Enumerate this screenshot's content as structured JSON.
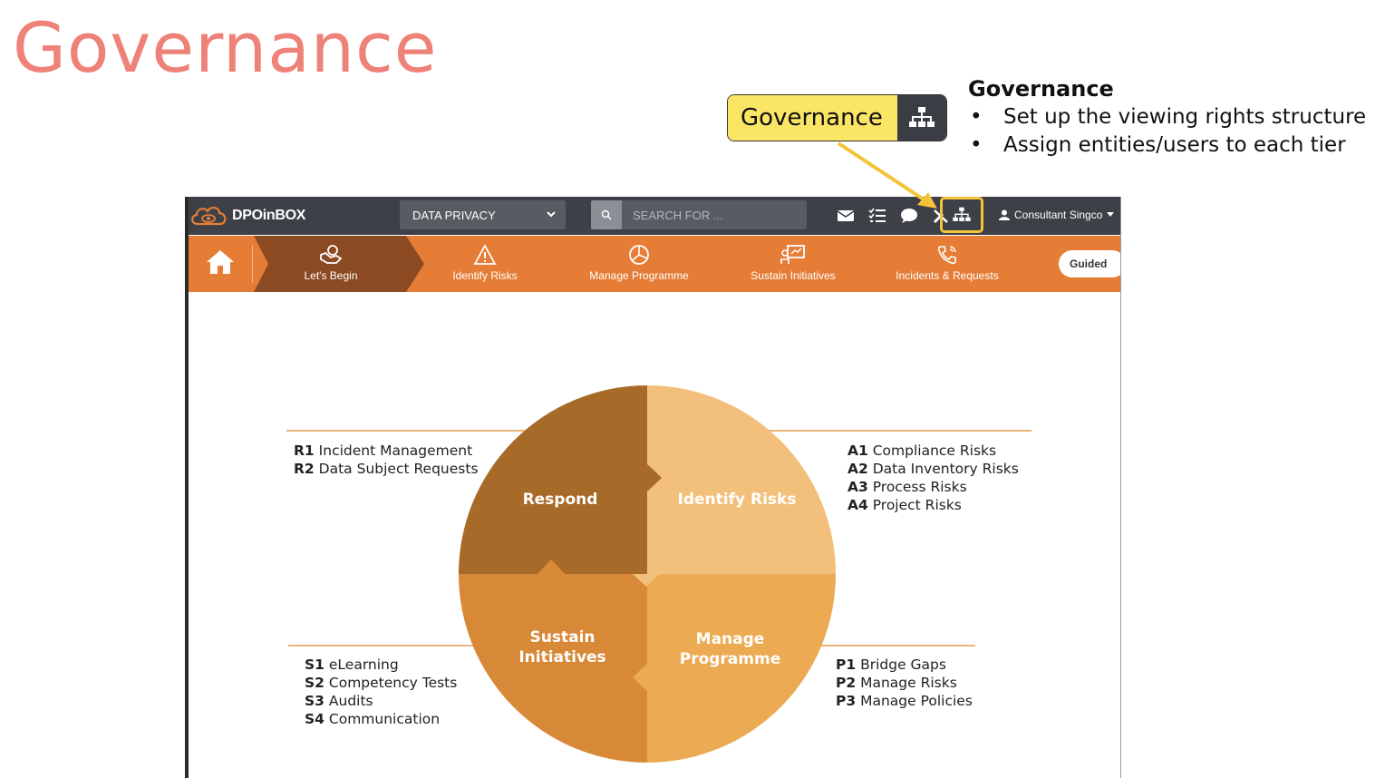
{
  "slide": {
    "title": "Governance"
  },
  "callout": {
    "label": "Governance",
    "icon": "sitemap-icon",
    "highlight_color": "#f4c33a"
  },
  "description": {
    "heading": "Governance",
    "bullets": [
      "Set up the viewing rights structure",
      "Assign entities/users to each tier"
    ]
  },
  "app": {
    "brand": "DPOinBOX",
    "module_select": "DATA PRIVACY",
    "search_placeholder": "SEARCH FOR ...",
    "top_icons": [
      "envelope-icon",
      "checklist-icon",
      "chat-icon",
      "tools-icon",
      "sitemap-icon"
    ],
    "user": "Consultant Singco",
    "nav": [
      {
        "label": "Let's Begin",
        "icon": "handshake-icon",
        "active": true
      },
      {
        "label": "Identify Risks",
        "icon": "warning-icon"
      },
      {
        "label": "Manage Programme",
        "icon": "chart-pie-icon"
      },
      {
        "label": "Sustain Initiatives",
        "icon": "presentation-icon"
      },
      {
        "label": "Incidents & Requests",
        "icon": "phone-icon"
      }
    ],
    "guided_label": "Guided",
    "colors": {
      "topbar": "#3d4147",
      "navbar": "#e57d37",
      "nav_active": "#8c4a22"
    }
  },
  "diagram": {
    "quadrants": {
      "respond": {
        "label": "Respond",
        "color": "#a86a28"
      },
      "identify": {
        "label": "Identify Risks",
        "color": "#f2c07a"
      },
      "sustain": {
        "label_line1": "Sustain",
        "label_line2": "Initiatives",
        "color": "#d88938"
      },
      "manage": {
        "label_line1": "Manage",
        "label_line2": "Programme",
        "color": "#ecaa52"
      }
    },
    "respond_items": [
      {
        "code": "R1",
        "text": "Incident Management"
      },
      {
        "code": "R2",
        "text": "Data Subject Requests"
      }
    ],
    "identify_items": [
      {
        "code": "A1",
        "text": "Compliance Risks"
      },
      {
        "code": "A2",
        "text": "Data Inventory Risks"
      },
      {
        "code": "A3",
        "text": "Process Risks"
      },
      {
        "code": "A4",
        "text": "Project Risks"
      }
    ],
    "sustain_items": [
      {
        "code": "S1",
        "text": "eLearning"
      },
      {
        "code": "S2",
        "text": "Competency Tests"
      },
      {
        "code": "S3",
        "text": "Audits"
      },
      {
        "code": "S4",
        "text": "Communication"
      }
    ],
    "manage_items": [
      {
        "code": "P1",
        "text": "Bridge Gaps"
      },
      {
        "code": "P2",
        "text": "Manage Risks"
      },
      {
        "code": "P3",
        "text": "Manage Policies"
      }
    ]
  }
}
